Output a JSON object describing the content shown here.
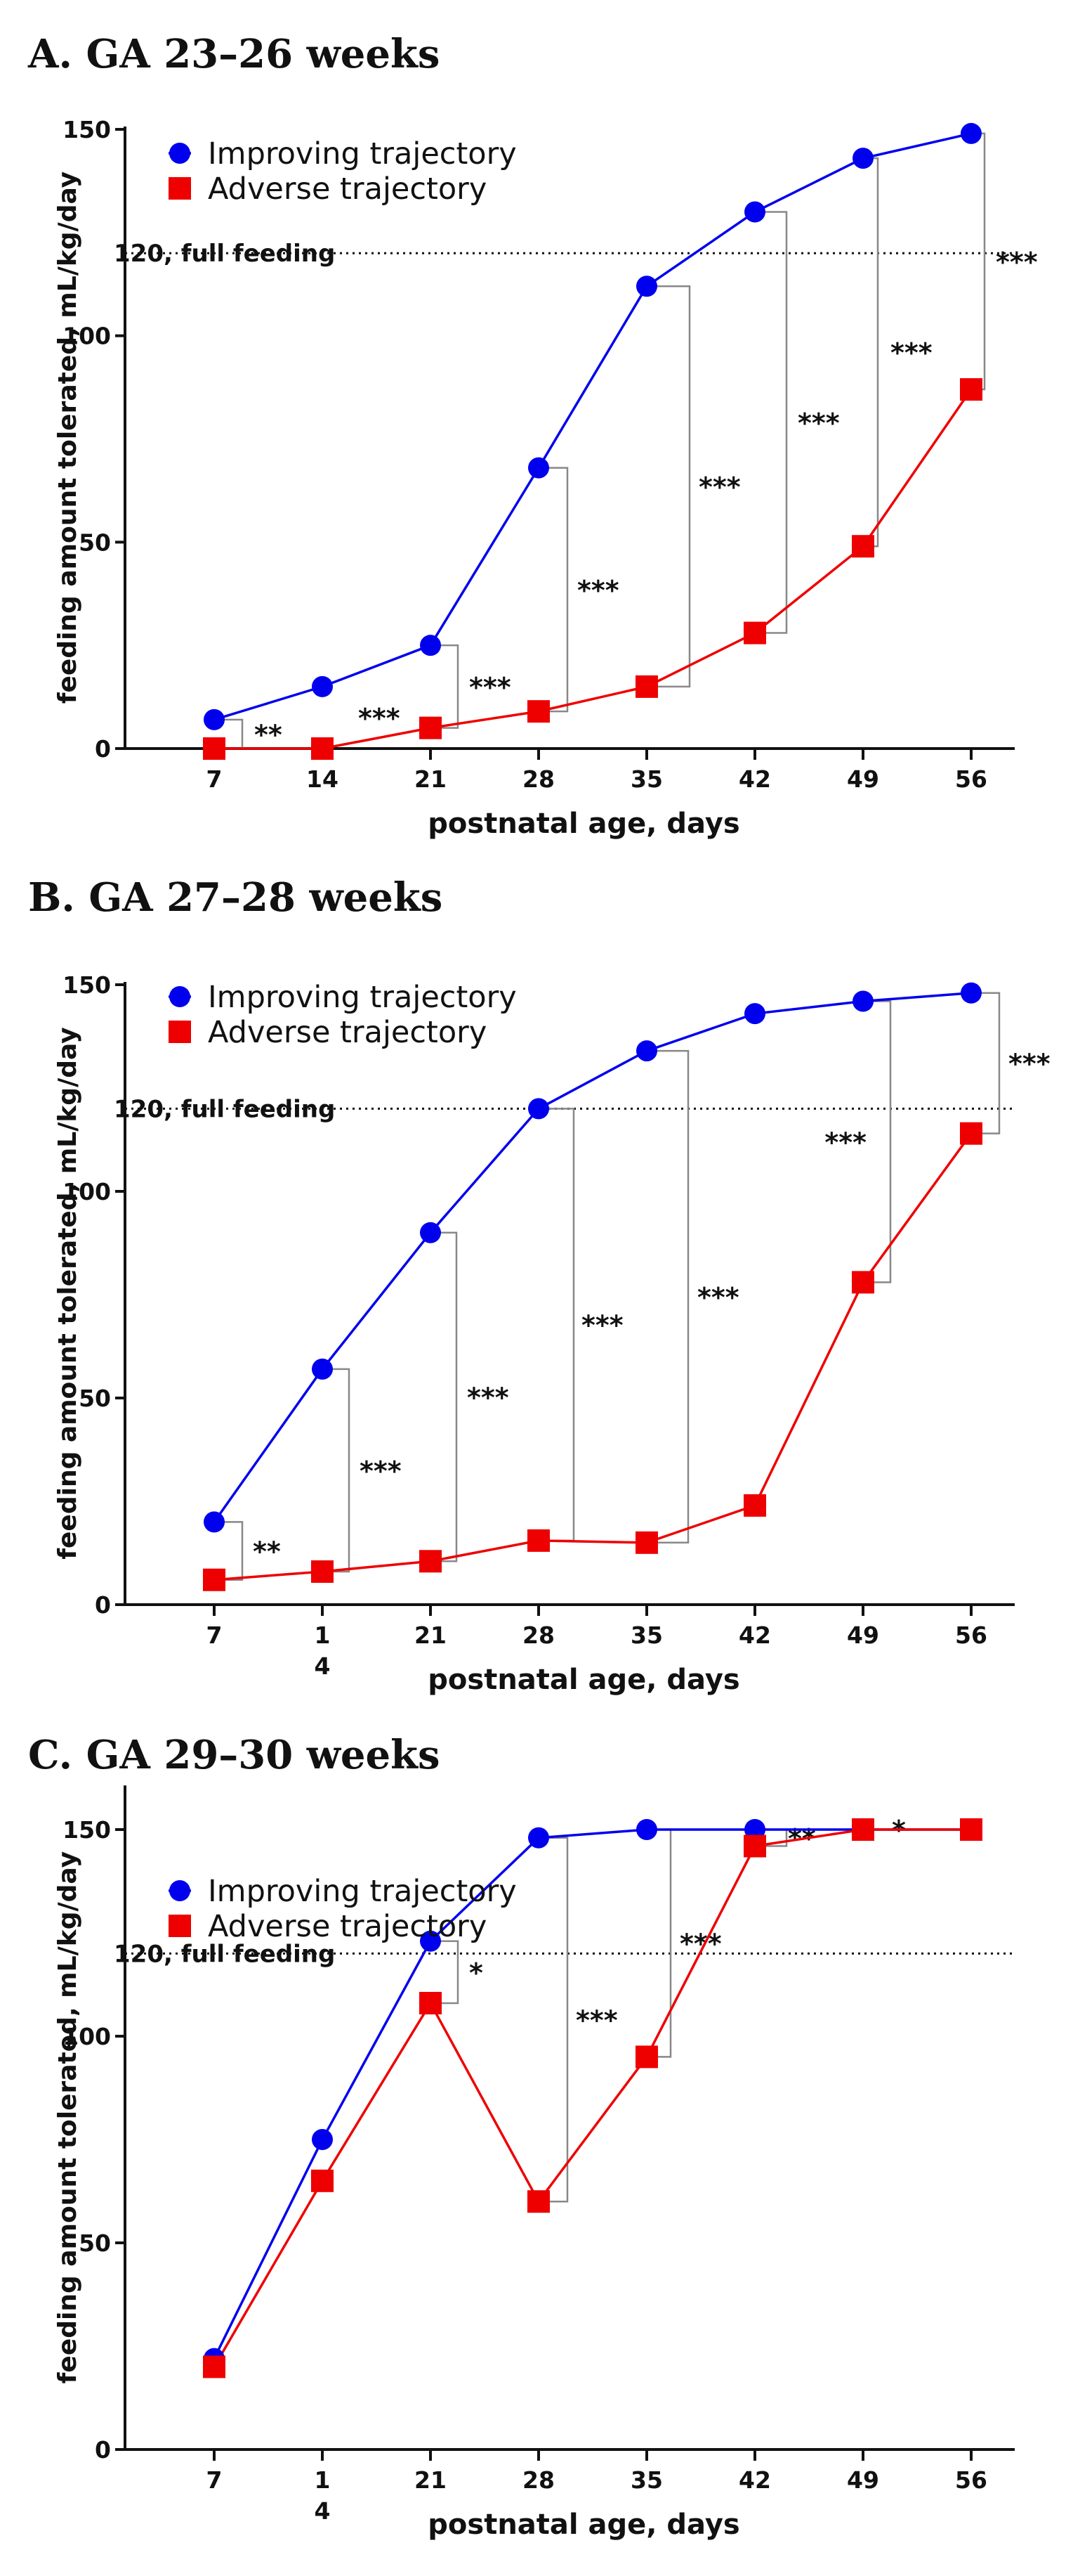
{
  "chart_data": [
    {
      "type": "line",
      "title": "A. GA 23–26 weeks",
      "xlabel": "postnatal age, days",
      "ylabel": "feeding amount tolerated, mL/kg/day",
      "categories": [
        "7",
        "14",
        "21",
        "28",
        "35",
        "42",
        "49",
        "56"
      ],
      "ylim": [
        0,
        150
      ],
      "yticks": [
        "0",
        "50",
        "100",
        "150"
      ],
      "reference_line": {
        "value": 120,
        "label": "120, full feeding"
      },
      "series": [
        {
          "name": "Improving trajectory",
          "color": "#0000ee",
          "marker": "circle",
          "values": [
            7,
            15,
            25,
            68,
            112,
            130,
            143,
            149
          ]
        },
        {
          "name": "Adverse trajectory",
          "color": "#ee0000",
          "marker": "square",
          "values": [
            0,
            0,
            5,
            9,
            15,
            28,
            49,
            87
          ]
        }
      ],
      "significance": [
        "**",
        "***",
        "***",
        "***",
        "***",
        "***",
        "***",
        "***"
      ]
    },
    {
      "type": "line",
      "title": "B. GA 27–28 weeks",
      "xlabel": "postnatal age, days",
      "ylabel": "feeding amount tolerated, mL/kg/day",
      "categories": [
        "7",
        "1\n4",
        "21",
        "28",
        "35",
        "42",
        "49",
        "56"
      ],
      "ylim": [
        0,
        150
      ],
      "yticks": [
        "0",
        "50",
        "100",
        "150"
      ],
      "reference_line": {
        "value": 120,
        "label": "120, full feeding"
      },
      "series": [
        {
          "name": "Improving trajectory",
          "color": "#0000ee",
          "marker": "circle",
          "values": [
            20,
            57,
            90,
            120,
            134,
            143,
            146,
            148
          ]
        },
        {
          "name": "Adverse trajectory",
          "color": "#ee0000",
          "marker": "square",
          "values": [
            6,
            8,
            10.5,
            15.5,
            15,
            24,
            78,
            114
          ]
        }
      ],
      "significance": [
        "**",
        "***",
        "***",
        "***",
        "***",
        "***",
        "***"
      ]
    },
    {
      "type": "line",
      "title": "C. GA 29–30 weeks",
      "xlabel": "postnatal age, days",
      "ylabel": "feeding amount tolerated, mL/kg/day",
      "categories": [
        "7",
        "1\n4",
        "21",
        "28",
        "35",
        "42",
        "49",
        "56"
      ],
      "ylim": [
        0,
        160
      ],
      "yticks": [
        "0",
        "50",
        "100",
        "150"
      ],
      "reference_line": {
        "value": 120,
        "label": "120, full feeding"
      },
      "series": [
        {
          "name": "Improving trajectory",
          "color": "#0000ee",
          "marker": "circle",
          "values": [
            22,
            75,
            123,
            148,
            150,
            150,
            150,
            150
          ]
        },
        {
          "name": "Adverse trajectory",
          "color": "#ee0000",
          "marker": "square",
          "values": [
            20,
            65,
            108,
            60,
            95,
            146,
            150,
            150
          ]
        }
      ],
      "significance": [
        "*",
        "***",
        "***",
        "**",
        "*"
      ]
    }
  ]
}
